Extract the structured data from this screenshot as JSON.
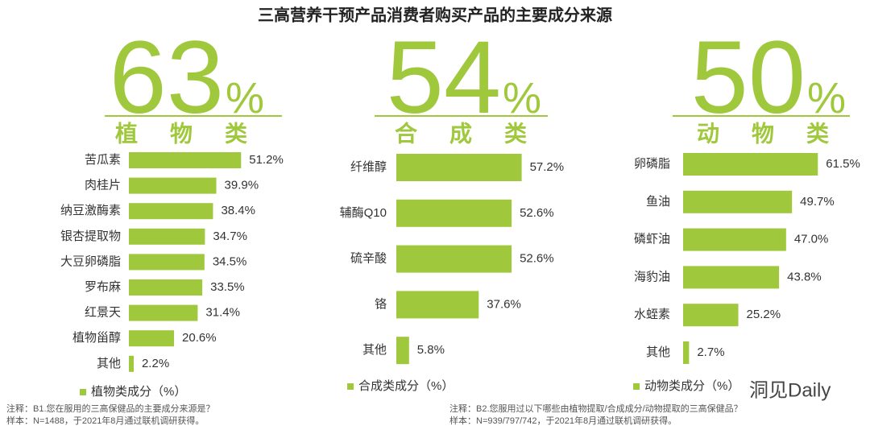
{
  "title": "三高营养干预产品消费者购买产品的主要成分来源",
  "chart_data": [
    {
      "type": "bar",
      "headline_number": "63",
      "headline_unit": "%",
      "group": "植物类",
      "categories": [
        "苦瓜素",
        "肉桂片",
        "纳豆激酶素",
        "银杏提取物",
        "大豆卵磷脂",
        "罗布麻",
        "红景天",
        "植物甾醇",
        "其他"
      ],
      "series": [
        {
          "name": "植物类成分（%）",
          "color": "#a0c83c",
          "values": [
            51.2,
            39.9,
            38.4,
            34.7,
            34.5,
            33.5,
            31.4,
            20.6,
            2.2
          ],
          "value_labels": [
            "51.2%",
            "39.9%",
            "38.4%",
            "34.7%",
            "34.5%",
            "33.5%",
            "31.4%",
            "20.6%",
            "2.2%"
          ]
        }
      ]
    },
    {
      "type": "bar",
      "headline_number": "54",
      "headline_unit": "%",
      "group": "合成类",
      "categories": [
        "纤维醇",
        "辅酶Q10",
        "硫辛酸",
        "铬",
        "其他"
      ],
      "series": [
        {
          "name": "合成类成分（%）",
          "color": "#a0c83c",
          "values": [
            57.2,
            52.6,
            52.6,
            37.6,
            5.8
          ],
          "value_labels": [
            "57.2%",
            "52.6%",
            "52.6%",
            "37.6%",
            "5.8%"
          ]
        }
      ]
    },
    {
      "type": "bar",
      "headline_number": "50",
      "headline_unit": "%",
      "group": "动物类",
      "categories": [
        "卵磷脂",
        "鱼油",
        "磷虾油",
        "海豹油",
        "水蛭素",
        "其他"
      ],
      "series": [
        {
          "name": "动物类成分（%）",
          "color": "#a0c83c",
          "values": [
            61.5,
            49.7,
            47.0,
            43.8,
            25.2,
            2.7
          ],
          "value_labels": [
            "61.5%",
            "49.7%",
            "47.0%",
            "43.8%",
            "25.2%",
            "2.7%"
          ]
        }
      ]
    }
  ],
  "notes": {
    "left": [
      "注释：B1.您在服用的三高保健品的主要成分来源是？",
      "样本：N=1488，于2021年8月通过联机调研获得。"
    ],
    "right": [
      "注释：B2.您服用过以下哪些由植物提取/合成成分/动物提取的三高保健品？",
      "样本：N=939/797/742，于2021年8月通过联机调研获得。"
    ]
  },
  "watermark": "洞见Daily"
}
